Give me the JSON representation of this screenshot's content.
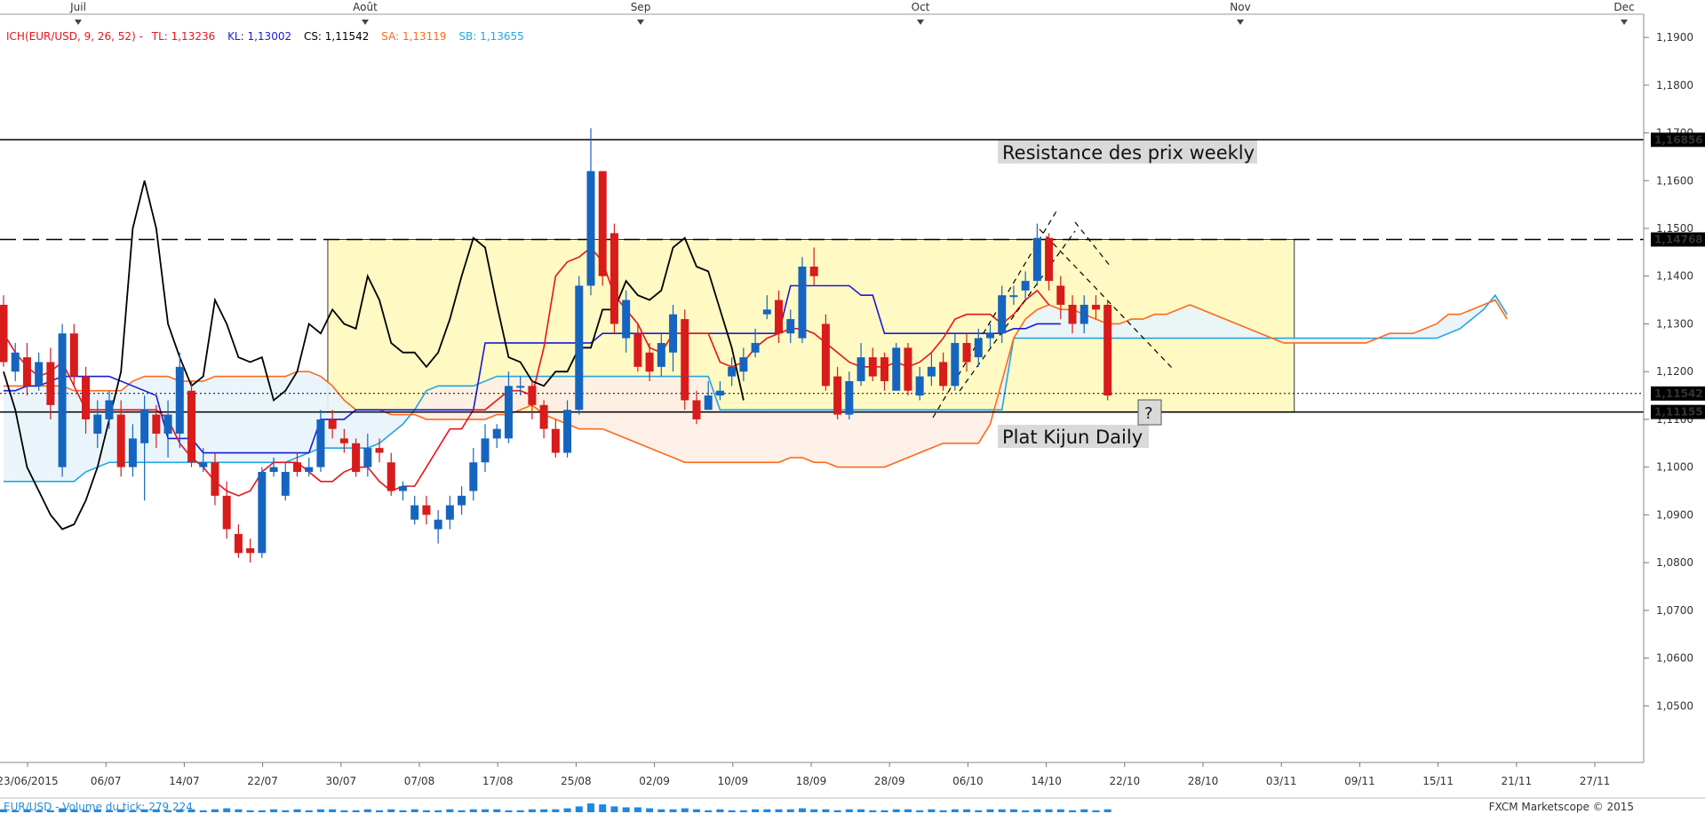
{
  "header": {
    "indicator": "ICH(EUR/USD, 9, 26, 52) -",
    "tl": "TL: 1,13236",
    "kl": "KL: 1,13002",
    "cs": "CS: 1,11542",
    "sa": "SA: 1,13119",
    "sb": "SB: 1,13655"
  },
  "months": [
    "Juil",
    "Août",
    "Sep",
    "Oct",
    "Nov",
    "Dec"
  ],
  "footer": {
    "volume_label": "EUR/USD - Volume du tick: 279 224",
    "watermark": "FXCM Marketscope © 2015"
  },
  "annotations": {
    "resistance": "Resistance des prix weekly",
    "kijun": "Plat Kijun Daily",
    "question": "?"
  },
  "colors": {
    "bull": "#1565c0",
    "bear": "#d81b1b",
    "tenkan": "#e8141c",
    "kijun": "#1a1ad4",
    "chikou": "#000000",
    "senkou_a": "#ff6a1a",
    "senkou_b": "#22a7e0",
    "box_fill": "#fff9c4"
  },
  "chart_data": {
    "type": "candlestick",
    "x_tick_labels": [
      "23/06/2015",
      "06/07",
      "14/07",
      "22/07",
      "30/07",
      "07/08",
      "17/08",
      "25/08",
      "02/09",
      "10/09",
      "18/09",
      "28/09",
      "06/10",
      "14/10",
      "22/10",
      "28/10",
      "03/11",
      "09/11",
      "15/11",
      "21/11",
      "27/11"
    ],
    "y_tick_labels": [
      "1,1900",
      "1,1800",
      "1,1700",
      "1,1600",
      "1,1500",
      "1,1400",
      "1,1300",
      "1,1200",
      "1,1100",
      "1,1000",
      "1,0900",
      "1,0800",
      "1,0700",
      "1,0600",
      "1,0500"
    ],
    "ylim": [
      1.04,
      1.193
    ],
    "price_labels": [
      {
        "text": "1,16856",
        "value": 1.16856,
        "style": "black"
      },
      {
        "text": "1,14768",
        "value": 1.14768,
        "style": "black"
      },
      {
        "text": "1,11542",
        "value": 1.11542,
        "style": "green"
      },
      {
        "text": "1,11155",
        "value": 1.11155,
        "style": "black"
      }
    ],
    "levels": [
      {
        "name": "resistance-weekly",
        "value": 1.16856,
        "style": "solid"
      },
      {
        "name": "box-top",
        "value": 1.14768,
        "style": "dashed"
      },
      {
        "name": "current-close",
        "value": 1.11542,
        "style": "dotted"
      },
      {
        "name": "flat-kijun",
        "value": 1.11155,
        "style": "solid"
      }
    ],
    "range_box": {
      "from_index": 27,
      "to_index": 76,
      "top": 1.14768,
      "bottom": 1.1115
    },
    "candles": [
      [
        1.134,
        1.122,
        1.136,
        1.121
      ],
      [
        1.12,
        1.124,
        1.126,
        1.118
      ],
      [
        1.123,
        1.117,
        1.126,
        1.115
      ],
      [
        1.117,
        1.122,
        1.124,
        1.116
      ],
      [
        1.122,
        1.113,
        1.125,
        1.11
      ],
      [
        1.1,
        1.128,
        1.13,
        1.098
      ],
      [
        1.128,
        1.119,
        1.13,
        1.117
      ],
      [
        1.119,
        1.11,
        1.121,
        1.107
      ],
      [
        1.107,
        1.111,
        1.114,
        1.104
      ],
      [
        1.11,
        1.114,
        1.116,
        1.108
      ],
      [
        1.111,
        1.1,
        1.114,
        1.098
      ],
      [
        1.1,
        1.106,
        1.109,
        1.098
      ],
      [
        1.105,
        1.112,
        1.115,
        1.093
      ],
      [
        1.111,
        1.107,
        1.113,
        1.104
      ],
      [
        1.107,
        1.111,
        1.114,
        1.102
      ],
      [
        1.107,
        1.121,
        1.124,
        1.104
      ],
      [
        1.116,
        1.101,
        1.118,
        1.1
      ],
      [
        1.1,
        1.101,
        1.104,
        1.099
      ],
      [
        1.101,
        1.094,
        1.103,
        1.092
      ],
      [
        1.094,
        1.087,
        1.097,
        1.085
      ],
      [
        1.086,
        1.082,
        1.088,
        1.081
      ],
      [
        1.083,
        1.082,
        1.085,
        1.08
      ],
      [
        1.082,
        1.099,
        1.1,
        1.081
      ],
      [
        1.099,
        1.1,
        1.102,
        1.098
      ],
      [
        1.094,
        1.099,
        1.101,
        1.093
      ],
      [
        1.101,
        1.099,
        1.103,
        1.098
      ],
      [
        1.099,
        1.1,
        1.102,
        1.098
      ],
      [
        1.1,
        1.11,
        1.112,
        1.099
      ],
      [
        1.11,
        1.108,
        1.112,
        1.106
      ],
      [
        1.106,
        1.105,
        1.108,
        1.103
      ],
      [
        1.105,
        1.099,
        1.106,
        1.098
      ],
      [
        1.1,
        1.104,
        1.107,
        1.098
      ],
      [
        1.104,
        1.103,
        1.106,
        1.101
      ],
      [
        1.101,
        1.095,
        1.103,
        1.094
      ],
      [
        1.095,
        1.096,
        1.097,
        1.093
      ],
      [
        1.089,
        1.092,
        1.094,
        1.088
      ],
      [
        1.092,
        1.09,
        1.094,
        1.088
      ],
      [
        1.087,
        1.089,
        1.091,
        1.084
      ],
      [
        1.089,
        1.092,
        1.094,
        1.087
      ],
      [
        1.092,
        1.094,
        1.096,
        1.09
      ],
      [
        1.095,
        1.101,
        1.104,
        1.093
      ],
      [
        1.101,
        1.106,
        1.109,
        1.099
      ],
      [
        1.106,
        1.108,
        1.109,
        1.104
      ],
      [
        1.106,
        1.117,
        1.12,
        1.105
      ],
      [
        1.117,
        1.117,
        1.119,
        1.115
      ],
      [
        1.117,
        1.113,
        1.118,
        1.11
      ],
      [
        1.113,
        1.108,
        1.114,
        1.106
      ],
      [
        1.108,
        1.103,
        1.11,
        1.102
      ],
      [
        1.103,
        1.112,
        1.114,
        1.102
      ],
      [
        1.112,
        1.138,
        1.14,
        1.111
      ],
      [
        1.138,
        1.162,
        1.171,
        1.136
      ],
      [
        1.162,
        1.14,
        1.162,
        1.138
      ],
      [
        1.149,
        1.13,
        1.151,
        1.128
      ],
      [
        1.127,
        1.135,
        1.137,
        1.124
      ],
      [
        1.128,
        1.121,
        1.13,
        1.12
      ],
      [
        1.124,
        1.12,
        1.126,
        1.118
      ],
      [
        1.121,
        1.126,
        1.128,
        1.119
      ],
      [
        1.124,
        1.132,
        1.134,
        1.12
      ],
      [
        1.131,
        1.114,
        1.133,
        1.112
      ],
      [
        1.114,
        1.11,
        1.116,
        1.109
      ],
      [
        1.112,
        1.115,
        1.118,
        1.112
      ],
      [
        1.115,
        1.116,
        1.118,
        1.114
      ],
      [
        1.119,
        1.121,
        1.123,
        1.117
      ],
      [
        1.12,
        1.123,
        1.125,
        1.118
      ],
      [
        1.124,
        1.126,
        1.129,
        1.123
      ],
      [
        1.132,
        1.133,
        1.136,
        1.131
      ],
      [
        1.135,
        1.128,
        1.137,
        1.126
      ],
      [
        1.128,
        1.131,
        1.133,
        1.126
      ],
      [
        1.127,
        1.142,
        1.144,
        1.126
      ],
      [
        1.142,
        1.14,
        1.146,
        1.138
      ],
      [
        1.13,
        1.117,
        1.132,
        1.116
      ],
      [
        1.119,
        1.111,
        1.121,
        1.11
      ],
      [
        1.111,
        1.118,
        1.12,
        1.11
      ],
      [
        1.118,
        1.123,
        1.126,
        1.117
      ],
      [
        1.123,
        1.119,
        1.125,
        1.118
      ],
      [
        1.123,
        1.118,
        1.124,
        1.116
      ],
      [
        1.116,
        1.125,
        1.126,
        1.116
      ],
      [
        1.125,
        1.116,
        1.126,
        1.115
      ],
      [
        1.115,
        1.119,
        1.121,
        1.114
      ],
      [
        1.119,
        1.121,
        1.124,
        1.117
      ],
      [
        1.122,
        1.117,
        1.124,
        1.116
      ],
      [
        1.117,
        1.126,
        1.128,
        1.116
      ],
      [
        1.126,
        1.122,
        1.128,
        1.12
      ],
      [
        1.123,
        1.127,
        1.129,
        1.121
      ],
      [
        1.127,
        1.128,
        1.13,
        1.125
      ],
      [
        1.128,
        1.136,
        1.138,
        1.126
      ],
      [
        1.136,
        1.136,
        1.138,
        1.134
      ],
      [
        1.137,
        1.139,
        1.141,
        1.135
      ],
      [
        1.139,
        1.148,
        1.151,
        1.138
      ],
      [
        1.148,
        1.139,
        1.149,
        1.137
      ],
      [
        1.138,
        1.134,
        1.14,
        1.131
      ],
      [
        1.134,
        1.13,
        1.136,
        1.128
      ],
      [
        1.13,
        1.134,
        1.136,
        1.128
      ],
      [
        1.134,
        1.133,
        1.136,
        1.131
      ],
      [
        1.134,
        1.115,
        1.135,
        1.114
      ]
    ],
    "tenkan": [
      1.128,
      1.124,
      1.121,
      1.119,
      1.12,
      1.122,
      1.117,
      1.112,
      1.112,
      1.112,
      1.112,
      1.112,
      1.112,
      1.112,
      1.11,
      1.105,
      1.102,
      1.1,
      1.097,
      1.095,
      1.094,
      1.095,
      1.099,
      1.101,
      1.101,
      1.101,
      1.099,
      1.097,
      1.097,
      1.099,
      1.1,
      1.1,
      1.097,
      1.095,
      1.096,
      1.096,
      1.1,
      1.104,
      1.108,
      1.108,
      1.112,
      1.112,
      1.114,
      1.116,
      1.116,
      1.115,
      1.125,
      1.14,
      1.143,
      1.144,
      1.146,
      1.143,
      1.136,
      1.133,
      1.13,
      1.125,
      1.124,
      1.128,
      1.128,
      1.128,
      1.128,
      1.122,
      1.121,
      1.122,
      1.125,
      1.127,
      1.128,
      1.129,
      1.129,
      1.128,
      1.126,
      1.124,
      1.122,
      1.121,
      1.121,
      1.121,
      1.122,
      1.121,
      1.122,
      1.124,
      1.127,
      1.131,
      1.132,
      1.132,
      1.132,
      1.13,
      1.132,
      1.135,
      1.137,
      1.134
    ],
    "kijun": [
      1.116,
      1.116,
      1.117,
      1.117,
      1.118,
      1.119,
      1.119,
      1.119,
      1.119,
      1.119,
      1.118,
      1.117,
      1.116,
      1.115,
      1.106,
      1.106,
      1.106,
      1.103,
      1.103,
      1.103,
      1.103,
      1.103,
      1.103,
      1.103,
      1.103,
      1.103,
      1.103,
      1.11,
      1.11,
      1.11,
      1.112,
      1.112,
      1.112,
      1.112,
      1.112,
      1.112,
      1.112,
      1.112,
      1.112,
      1.112,
      1.112,
      1.126,
      1.126,
      1.126,
      1.126,
      1.126,
      1.126,
      1.126,
      1.126,
      1.126,
      1.126,
      1.128,
      1.128,
      1.128,
      1.128,
      1.128,
      1.128,
      1.128,
      1.128,
      1.128,
      1.128,
      1.128,
      1.128,
      1.128,
      1.128,
      1.128,
      1.128,
      1.138,
      1.138,
      1.138,
      1.138,
      1.138,
      1.138,
      1.136,
      1.136,
      1.128,
      1.128,
      1.128,
      1.128,
      1.128,
      1.128,
      1.128,
      1.128,
      1.128,
      1.128,
      1.128,
      1.129,
      1.129,
      1.13,
      1.13,
      1.13
    ],
    "chikou": [
      1.12,
      1.112,
      1.1,
      1.095,
      1.09,
      1.087,
      1.088,
      1.093,
      1.1,
      1.11,
      1.12,
      1.15,
      1.16,
      1.15,
      1.13,
      1.123,
      1.117,
      1.119,
      1.135,
      1.13,
      1.123,
      1.122,
      1.123,
      1.114,
      1.116,
      1.12,
      1.13,
      1.128,
      1.133,
      1.13,
      1.129,
      1.14,
      1.135,
      1.126,
      1.124,
      1.124,
      1.121,
      1.124,
      1.131,
      1.14,
      1.148,
      1.146,
      1.134,
      1.123,
      1.122,
      1.118,
      1.117,
      1.12,
      1.12,
      1.125,
      1.125,
      1.133,
      1.133,
      1.139,
      1.136,
      1.135,
      1.137,
      1.146,
      1.148,
      1.142,
      1.141,
      1.133,
      1.125,
      1.114
    ],
    "senkou_a": [
      1.117,
      1.117,
      1.117,
      1.117,
      1.117,
      1.117,
      1.116,
      1.116,
      1.116,
      1.116,
      1.116,
      1.118,
      1.119,
      1.119,
      1.119,
      1.118,
      1.118,
      1.118,
      1.119,
      1.119,
      1.119,
      1.119,
      1.119,
      1.119,
      1.119,
      1.12,
      1.12,
      1.119,
      1.117,
      1.114,
      1.112,
      1.112,
      1.112,
      1.111,
      1.111,
      1.111,
      1.11,
      1.11,
      1.11,
      1.11,
      1.11,
      1.11,
      1.111,
      1.111,
      1.112,
      1.113,
      1.111,
      1.11,
      1.109,
      1.108,
      1.108,
      1.108,
      1.107,
      1.106,
      1.105,
      1.104,
      1.103,
      1.102,
      1.101,
      1.101,
      1.101,
      1.101,
      1.101,
      1.101,
      1.101,
      1.101,
      1.101,
      1.102,
      1.102,
      1.101,
      1.101,
      1.1,
      1.1,
      1.1,
      1.1,
      1.1,
      1.101,
      1.102,
      1.103,
      1.104,
      1.105,
      1.105,
      1.105,
      1.105,
      1.109,
      1.118,
      1.127,
      1.131,
      1.133,
      1.134,
      1.133,
      1.133,
      1.132,
      1.131,
      1.13,
      1.13,
      1.131,
      1.131,
      1.132,
      1.132,
      1.133,
      1.134,
      1.133,
      1.132,
      1.131,
      1.13,
      1.129,
      1.128,
      1.127,
      1.126,
      1.126,
      1.126,
      1.126,
      1.126,
      1.126,
      1.126,
      1.126,
      1.127,
      1.128,
      1.128,
      1.128,
      1.129,
      1.13,
      1.132,
      1.132,
      1.133,
      1.134,
      1.135,
      1.131
    ],
    "senkou_b": [
      1.097,
      1.097,
      1.097,
      1.097,
      1.097,
      1.097,
      1.097,
      1.099,
      1.1,
      1.101,
      1.101,
      1.101,
      1.101,
      1.101,
      1.101,
      1.101,
      1.101,
      1.101,
      1.101,
      1.101,
      1.101,
      1.101,
      1.101,
      1.101,
      1.101,
      1.102,
      1.103,
      1.104,
      1.104,
      1.104,
      1.104,
      1.104,
      1.105,
      1.107,
      1.109,
      1.112,
      1.116,
      1.117,
      1.117,
      1.117,
      1.117,
      1.118,
      1.119,
      1.119,
      1.119,
      1.119,
      1.119,
      1.119,
      1.119,
      1.119,
      1.119,
      1.119,
      1.119,
      1.119,
      1.119,
      1.119,
      1.119,
      1.119,
      1.119,
      1.119,
      1.119,
      1.112,
      1.112,
      1.112,
      1.112,
      1.112,
      1.112,
      1.112,
      1.112,
      1.112,
      1.112,
      1.112,
      1.112,
      1.112,
      1.112,
      1.112,
      1.112,
      1.112,
      1.112,
      1.112,
      1.112,
      1.112,
      1.112,
      1.112,
      1.112,
      1.112,
      1.127,
      1.127,
      1.127,
      1.127,
      1.127,
      1.127,
      1.127,
      1.127,
      1.127,
      1.127,
      1.127,
      1.127,
      1.127,
      1.127,
      1.127,
      1.127,
      1.127,
      1.127,
      1.127,
      1.127,
      1.127,
      1.127,
      1.127,
      1.127,
      1.127,
      1.127,
      1.127,
      1.127,
      1.127,
      1.127,
      1.127,
      1.127,
      1.127,
      1.127,
      1.127,
      1.127,
      1.127,
      1.128,
      1.129,
      1.131,
      1.133,
      1.136,
      1.132
    ],
    "volumes": [
      3,
      2,
      3,
      2,
      2,
      4,
      3,
      2,
      3,
      2,
      3,
      2,
      3,
      3,
      2,
      3,
      3,
      2,
      3,
      4,
      3,
      2,
      2,
      3,
      2,
      3,
      2,
      3,
      3,
      2,
      2,
      3,
      2,
      3,
      2,
      3,
      2,
      2,
      3,
      2,
      3,
      3,
      3,
      2,
      2,
      3,
      3,
      3,
      4,
      6,
      9,
      8,
      6,
      5,
      5,
      4,
      3,
      3,
      4,
      3,
      2,
      3,
      2,
      2,
      3,
      3,
      3,
      3,
      4,
      3,
      3,
      2,
      3,
      3,
      2,
      2,
      3,
      3,
      2,
      3,
      2,
      3,
      3,
      2,
      3,
      3,
      3,
      2,
      3,
      3,
      3,
      2,
      3,
      2,
      3
    ]
  }
}
